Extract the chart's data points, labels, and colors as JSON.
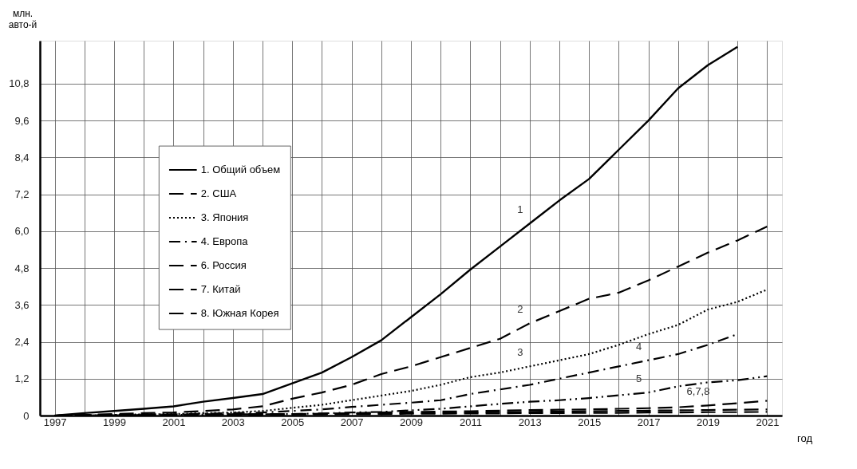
{
  "chart_data": {
    "type": "line",
    "xlabel": "год",
    "ylabel": "млн.\nавто-й",
    "categories": [
      "1997",
      null,
      "1999",
      null,
      "2001",
      null,
      "2003",
      null,
      "2005",
      null,
      "2007",
      null,
      "2009",
      null,
      "2011",
      null,
      "2013",
      null,
      "2015",
      null,
      "2017",
      null,
      "2019",
      null,
      "2021"
    ],
    "ylim": [
      0,
      12.2
    ],
    "yticks": [
      0,
      {
        "value": 1.2,
        "label": "1,2"
      },
      {
        "value": 2.4,
        "label": "2,4"
      },
      {
        "value": 3.6,
        "label": "3,6"
      },
      {
        "value": 4.8,
        "label": "4,8"
      },
      {
        "value": 6.0,
        "label": "6,0"
      },
      {
        "value": 7.2,
        "label": "7,2"
      },
      {
        "value": 8.4,
        "label": "8,4"
      },
      {
        "value": 9.6,
        "label": "9,6"
      },
      {
        "value": 10.8,
        "label": "10,8"
      }
    ],
    "grid": true,
    "legend": "left",
    "series": [
      {
        "name": "1. Общий объем",
        "color": "#000000",
        "line_style": "solid",
        "values": [
          0,
          0.08,
          0.15,
          0.22,
          0.3,
          0.45,
          0.57,
          0.7,
          1.05,
          1.4,
          1.9,
          2.45,
          3.2,
          3.95,
          4.75,
          5.5,
          6.25,
          7.0,
          7.7,
          8.65,
          9.6,
          10.65,
          11.4,
          12.0,
          null
        ]
      },
      {
        "name": "2. США",
        "color": "#000000",
        "line_style": "dashed",
        "values": [
          0,
          0.02,
          0.05,
          0.08,
          0.1,
          0.15,
          0.2,
          0.3,
          0.55,
          0.75,
          1.0,
          1.35,
          1.6,
          1.9,
          2.2,
          2.5,
          3.0,
          3.4,
          3.8,
          4.0,
          4.4,
          4.85,
          5.3,
          5.7,
          6.15
        ]
      },
      {
        "name": "3. Япония",
        "color": "#000000",
        "line_style": "dotted",
        "values": [
          0,
          0.01,
          0.02,
          0.04,
          0.05,
          0.08,
          0.1,
          0.15,
          0.25,
          0.35,
          0.5,
          0.65,
          0.8,
          1.0,
          1.25,
          1.4,
          1.6,
          1.8,
          2.0,
          2.3,
          2.65,
          2.95,
          3.45,
          3.7,
          4.1
        ]
      },
      {
        "name": "4. Европа",
        "color": "#000000",
        "line_style": "dashdot",
        "values": [
          0,
          0.01,
          0.02,
          0.03,
          0.04,
          0.06,
          0.08,
          0.1,
          0.15,
          0.2,
          0.28,
          0.35,
          0.42,
          0.5,
          0.7,
          0.85,
          1.0,
          1.2,
          1.4,
          1.6,
          1.8,
          2.0,
          2.3,
          2.65,
          null
        ]
      },
      {
        "color": "#000000",
        "line_style": "dashdotdot",
        "values": [
          0,
          0.01,
          0.01,
          0.02,
          0.02,
          0.03,
          0.04,
          0.04,
          0.05,
          0.07,
          0.1,
          0.12,
          0.17,
          0.22,
          0.3,
          0.38,
          0.45,
          0.5,
          0.57,
          0.66,
          0.75,
          0.95,
          1.08,
          1.15,
          1.28
        ]
      },
      {
        "name": "6. Россия",
        "color": "#000000",
        "line_style": "dashed",
        "values": [
          0,
          0.01,
          0.02,
          0.03,
          0.03,
          0.04,
          0.04,
          0.05,
          0.05,
          0.06,
          0.08,
          0.1,
          0.12,
          0.13,
          0.14,
          0.16,
          0.18,
          0.19,
          0.2,
          0.22,
          0.24,
          0.27,
          0.33,
          0.4,
          0.48
        ]
      },
      {
        "name": "7. Китай",
        "color": "#000000",
        "line_style": "dashed",
        "values": [
          0,
          0.01,
          0.01,
          0.02,
          0.02,
          0.03,
          0.03,
          0.04,
          0.04,
          0.05,
          0.06,
          0.07,
          0.08,
          0.09,
          0.1,
          0.11,
          0.12,
          0.13,
          0.14,
          0.15,
          0.16,
          0.17,
          0.18,
          0.19,
          0.2
        ]
      },
      {
        "name": "8. Южная Корея",
        "color": "#000000",
        "line_style": "dashed",
        "values": [
          0,
          0,
          0.01,
          0.01,
          0.02,
          0.02,
          0.03,
          0.03,
          0.04,
          0.04,
          0.05,
          0.05,
          0.06,
          0.06,
          0.07,
          0.07,
          0.08,
          0.08,
          0.09,
          0.09,
          0.1,
          0.1,
          0.11,
          0.11,
          0.12
        ]
      }
    ],
    "annotations": [
      {
        "text": "1",
        "x": "2013",
        "y": 6.25
      },
      {
        "text": "2",
        "x": "2013",
        "y": 3.0
      },
      {
        "text": "3",
        "x": "2013",
        "y": 1.6
      },
      {
        "text": "4",
        "x": "2017",
        "y": 1.8
      },
      {
        "text": "5",
        "x": "2017",
        "y": 0.75
      },
      {
        "text": "6,7,8",
        "x": "2019",
        "y": 0.33
      }
    ]
  }
}
